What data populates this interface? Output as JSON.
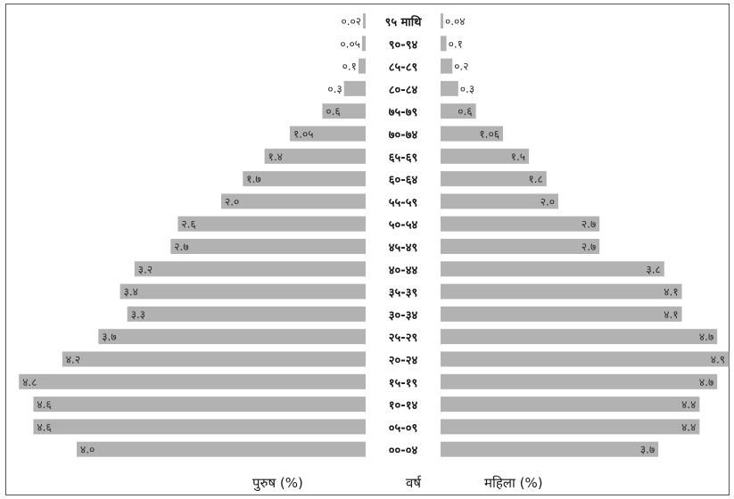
{
  "chart_data": {
    "type": "bar",
    "orientation": "horizontal",
    "subtype": "population-pyramid",
    "categories": [
      "९५ माथि",
      "९०-९४",
      "८५-८९",
      "८०-८४",
      "७५-७९",
      "७०-७४",
      "६५-६९",
      "६०-६४",
      "५५-५९",
      "५०-५४",
      "४५-४९",
      "४०-४४",
      "३५-३९",
      "३०-३४",
      "२५-२९",
      "२०-२४",
      "१५-१९",
      "१०-१४",
      "०५-०९",
      "००-०४"
    ],
    "series": [
      {
        "name": "पुरुष (%)",
        "side": "left",
        "values": [
          0.02,
          0.05,
          0.1,
          0.3,
          0.6,
          1.05,
          1.4,
          1.7,
          2.0,
          2.6,
          2.7,
          3.2,
          3.4,
          3.3,
          3.7,
          4.2,
          4.8,
          4.6,
          4.6,
          4.0
        ],
        "labels": [
          "०.०२",
          "०.०५",
          "०.१",
          "०.३",
          "०.६",
          "१.०५",
          "१.४",
          "१.७",
          "२.०",
          "२.६",
          "२.७",
          "३.२",
          "३.४",
          "३.३",
          "३.७",
          "४.२",
          "४.८",
          "४.६",
          "४.६",
          "४.०"
        ]
      },
      {
        "name": "महिला (%)",
        "side": "right",
        "values": [
          0.04,
          0.1,
          0.2,
          0.3,
          0.6,
          1.06,
          1.5,
          1.8,
          2.0,
          2.7,
          2.7,
          3.8,
          4.1,
          4.1,
          4.7,
          4.9,
          4.7,
          4.4,
          4.4,
          3.7
        ],
        "labels": [
          "०.०४",
          "०.१",
          "०.२",
          "०.३",
          "०.६",
          "१.०६",
          "१.५",
          "१.८",
          "२.०",
          "२.७",
          "२.७",
          "३.८",
          "४.१",
          "४.१",
          "४.७",
          "४.९",
          "४.७",
          "४.४",
          "४.४",
          "३.७"
        ]
      }
    ],
    "xlabel_left": "पुरुष (%)",
    "xlabel_center": "वर्ष",
    "xlabel_right": "महिला (%)",
    "xlim": [
      0,
      4.9
    ],
    "grid": false,
    "bar_color": "#b2b2b2"
  }
}
